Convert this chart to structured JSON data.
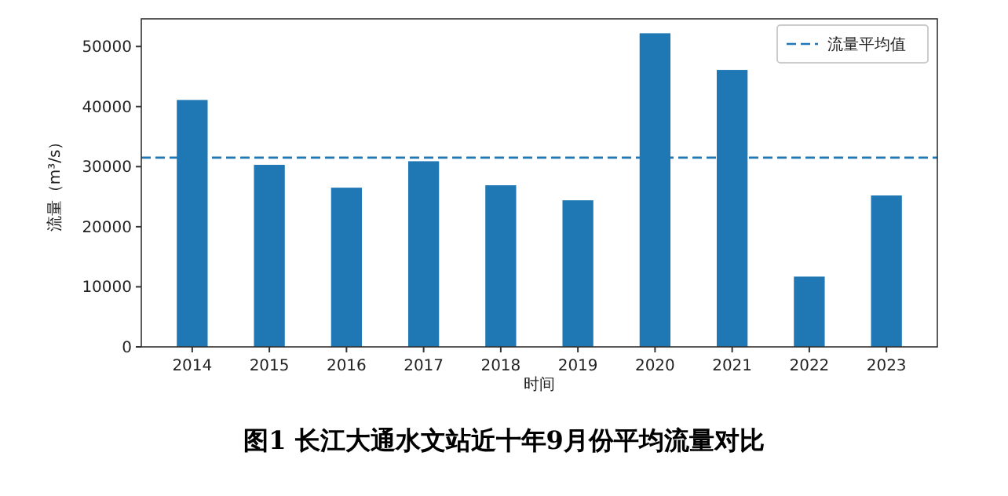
{
  "chart_data": {
    "type": "bar",
    "title": "图1 长江大通水文站近十年9月份平均流量对比",
    "xlabel": "时间",
    "ylabel": "流量（m³/s）",
    "categories": [
      "2014",
      "2015",
      "2016",
      "2017",
      "2018",
      "2019",
      "2020",
      "2021",
      "2022",
      "2023"
    ],
    "values": [
      41100,
      30300,
      26500,
      30900,
      26900,
      24400,
      52200,
      46100,
      11700,
      25200
    ],
    "color": "#1f77b4",
    "ylim": [
      0,
      54600
    ],
    "yticks": [
      0,
      10000,
      20000,
      30000,
      40000,
      50000
    ],
    "ref_lines": [
      {
        "axis": "y",
        "value": 31500,
        "label": "流量平均值",
        "color": "#1f77b4",
        "line_style": "dashed"
      }
    ],
    "legend": "top right",
    "grid": false
  }
}
